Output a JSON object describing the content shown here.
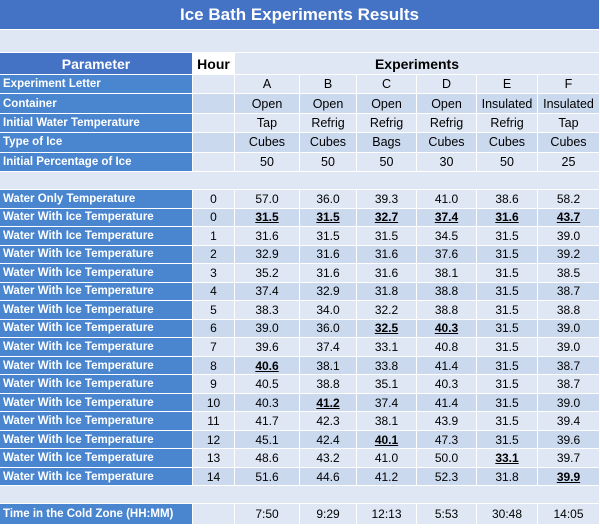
{
  "title": "Ice Bath Experiments Results",
  "header": {
    "parameter": "Parameter",
    "hour": "Hour",
    "experiments": "Experiments"
  },
  "parameters": [
    {
      "label": "Experiment Letter",
      "values": [
        "A",
        "B",
        "C",
        "D",
        "E",
        "F"
      ]
    },
    {
      "label": "Container",
      "values": [
        "Open",
        "Open",
        "Open",
        "Open",
        "Insulated",
        "Insulated"
      ]
    },
    {
      "label": "Initial Water Temperature",
      "values": [
        "Tap",
        "Refrig",
        "Refrig",
        "Refrig",
        "Refrig",
        "Tap"
      ]
    },
    {
      "label": "Type of Ice",
      "values": [
        "Cubes",
        "Cubes",
        "Bags",
        "Cubes",
        "Cubes",
        "Cubes"
      ]
    },
    {
      "label": "Initial Percentage of Ice",
      "values": [
        "50",
        "50",
        "50",
        "30",
        "50",
        "25"
      ]
    }
  ],
  "temperatures": [
    {
      "label": "Water Only Temperature",
      "hour": "0",
      "values": [
        "57.0",
        "36.0",
        "39.3",
        "41.0",
        "38.6",
        "58.2"
      ]
    },
    {
      "label": "Water With Ice Temperature",
      "hour": "0",
      "values": [
        "31.5",
        "31.5",
        "32.7",
        "37.4",
        "31.6",
        "43.7"
      ],
      "bold": [
        0,
        1,
        2,
        3,
        4,
        5
      ]
    },
    {
      "label": "Water With Ice Temperature",
      "hour": "1",
      "values": [
        "31.6",
        "31.5",
        "31.5",
        "34.5",
        "31.5",
        "39.0"
      ]
    },
    {
      "label": "Water With Ice Temperature",
      "hour": "2",
      "values": [
        "32.9",
        "31.6",
        "31.6",
        "37.6",
        "31.5",
        "39.2"
      ]
    },
    {
      "label": "Water With Ice Temperature",
      "hour": "3",
      "values": [
        "35.2",
        "31.6",
        "31.6",
        "38.1",
        "31.5",
        "38.5"
      ]
    },
    {
      "label": "Water With Ice Temperature",
      "hour": "4",
      "values": [
        "37.4",
        "32.9",
        "31.8",
        "38.8",
        "31.5",
        "38.7"
      ]
    },
    {
      "label": "Water With Ice Temperature",
      "hour": "5",
      "values": [
        "38.3",
        "34.0",
        "32.2",
        "38.8",
        "31.5",
        "38.8"
      ]
    },
    {
      "label": "Water With Ice Temperature",
      "hour": "6",
      "values": [
        "39.0",
        "36.0",
        "32.5",
        "40.3",
        "31.5",
        "39.0"
      ],
      "bold": [
        2,
        3
      ]
    },
    {
      "label": "Water With Ice Temperature",
      "hour": "7",
      "values": [
        "39.6",
        "37.4",
        "33.1",
        "40.8",
        "31.5",
        "39.0"
      ]
    },
    {
      "label": "Water With Ice Temperature",
      "hour": "8",
      "values": [
        "40.6",
        "38.1",
        "33.8",
        "41.4",
        "31.5",
        "38.7"
      ],
      "bold": [
        0
      ]
    },
    {
      "label": "Water With Ice Temperature",
      "hour": "9",
      "values": [
        "40.5",
        "38.8",
        "35.1",
        "40.3",
        "31.5",
        "38.7"
      ]
    },
    {
      "label": "Water With Ice Temperature",
      "hour": "10",
      "values": [
        "40.3",
        "41.2",
        "37.4",
        "41.4",
        "31.5",
        "39.0"
      ],
      "bold": [
        1
      ]
    },
    {
      "label": "Water With Ice Temperature",
      "hour": "11",
      "values": [
        "41.7",
        "42.3",
        "38.1",
        "43.9",
        "31.5",
        "39.4"
      ]
    },
    {
      "label": "Water With Ice Temperature",
      "hour": "12",
      "values": [
        "45.1",
        "42.4",
        "40.1",
        "47.3",
        "31.5",
        "39.6"
      ],
      "bold": [
        2
      ]
    },
    {
      "label": "Water With Ice Temperature",
      "hour": "13",
      "values": [
        "48.6",
        "43.2",
        "41.0",
        "50.0",
        "33.1",
        "39.7"
      ],
      "bold": [
        4
      ]
    },
    {
      "label": "Water With Ice Temperature",
      "hour": "14",
      "values": [
        "51.6",
        "44.6",
        "41.2",
        "52.3",
        "31.8",
        "39.9"
      ],
      "bold": [
        5
      ]
    }
  ],
  "time": {
    "label": "Time in the Cold Zone (HH:MM)",
    "values": [
      "7:50",
      "9:29",
      "12:13",
      "5:53",
      "30:48",
      "14:05"
    ]
  }
}
